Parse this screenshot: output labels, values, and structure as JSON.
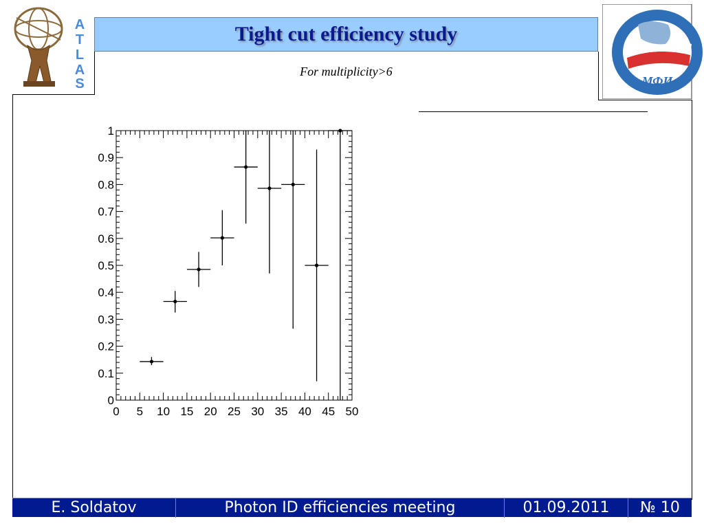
{
  "slide": {
    "title": "Tight cut efficiency study",
    "subtitle": "For multiplicity>6"
  },
  "logos": {
    "left_name": "atlas-logo",
    "left_letters": [
      "A",
      "T",
      "L",
      "A",
      "S"
    ],
    "right_name": "mephi-logo"
  },
  "footer": {
    "author": "E. Soldatov",
    "meeting": "Photon ID efficiencies meeting",
    "date": "01.09.2011",
    "page": "№ 10"
  },
  "chart_data": {
    "type": "scatter",
    "title": "",
    "xlabel": "",
    "ylabel": "",
    "xlim": [
      0,
      50
    ],
    "ylim": [
      0,
      1
    ],
    "x_ticks": [
      "0",
      "5",
      "10",
      "15",
      "20",
      "25",
      "30",
      "35",
      "40",
      "45",
      "50"
    ],
    "y_ticks": [
      "0",
      "0.1",
      "0.2",
      "0.3",
      "0.4",
      "0.5",
      "0.6",
      "0.7",
      "0.8",
      "0.9",
      "1"
    ],
    "grid": false,
    "points": [
      {
        "x": 7.5,
        "y": 0.143,
        "x_err": 2.5,
        "y_low": 0.13,
        "y_high": 0.16
      },
      {
        "x": 12.5,
        "y": 0.366,
        "x_err": 2.5,
        "y_low": 0.325,
        "y_high": 0.405
      },
      {
        "x": 17.5,
        "y": 0.485,
        "x_err": 2.5,
        "y_low": 0.42,
        "y_high": 0.55
      },
      {
        "x": 22.5,
        "y": 0.602,
        "x_err": 2.5,
        "y_low": 0.5,
        "y_high": 0.705
      },
      {
        "x": 27.5,
        "y": 0.865,
        "x_err": 2.5,
        "y_low": 0.655,
        "y_high": 1.0
      },
      {
        "x": 32.5,
        "y": 0.786,
        "x_err": 2.5,
        "y_low": 0.47,
        "y_high": 1.0
      },
      {
        "x": 37.5,
        "y": 0.8,
        "x_err": 2.5,
        "y_low": 0.265,
        "y_high": 1.0
      },
      {
        "x": 42.5,
        "y": 0.5,
        "x_err": 2.5,
        "y_low": 0.07,
        "y_high": 0.93
      },
      {
        "x": 47.5,
        "y": 1.0,
        "x_err": 2.5,
        "y_low": 0.0,
        "y_high": 1.0
      }
    ]
  }
}
